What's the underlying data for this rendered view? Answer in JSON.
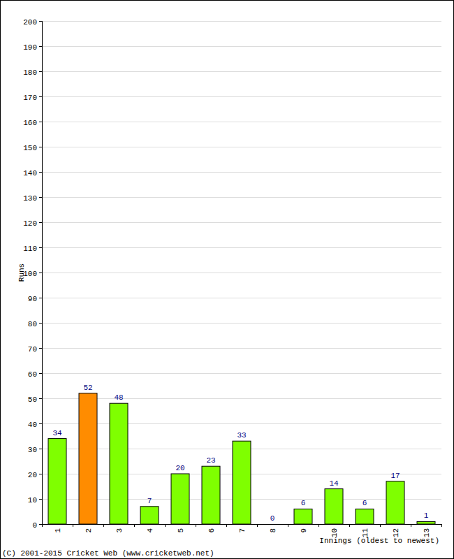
{
  "chart_data": {
    "type": "bar",
    "categories": [
      "1",
      "2",
      "3",
      "4",
      "5",
      "6",
      "7",
      "8",
      "9",
      "10",
      "11",
      "12",
      "13"
    ],
    "values": [
      34,
      52,
      48,
      7,
      20,
      23,
      33,
      0,
      6,
      14,
      6,
      17,
      1
    ],
    "colors": [
      "#7fff00",
      "#ff8c00",
      "#7fff00",
      "#7fff00",
      "#7fff00",
      "#7fff00",
      "#7fff00",
      "#7fff00",
      "#7fff00",
      "#7fff00",
      "#7fff00",
      "#7fff00",
      "#7fff00"
    ],
    "ylim": [
      0,
      200
    ],
    "yticks": [
      0,
      10,
      20,
      30,
      40,
      50,
      60,
      70,
      80,
      90,
      100,
      110,
      120,
      130,
      140,
      150,
      160,
      170,
      180,
      190,
      200
    ],
    "grid": true,
    "data_labels": true,
    "y_label": "Runs",
    "x_label": "Innings (oldest to newest)",
    "annotations": [
      "(C) 2001-2015 Cricket Web (www.cricketweb.net)"
    ]
  }
}
